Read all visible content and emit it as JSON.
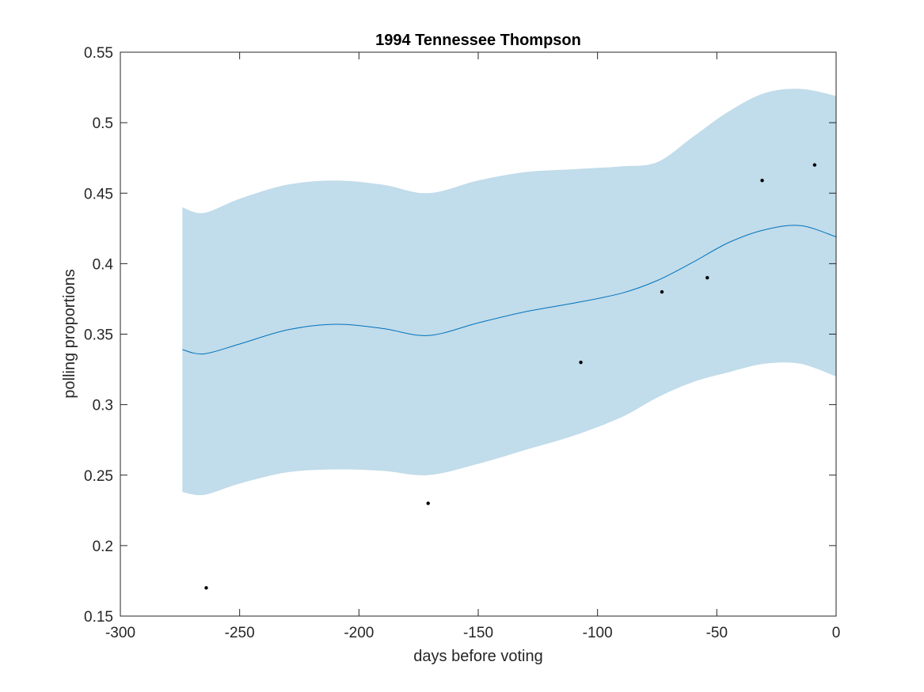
{
  "chart_data": {
    "type": "line",
    "title": "1994 Tennessee Thompson",
    "xlabel": "days before voting",
    "ylabel": "polling proportions",
    "xlim": [
      -300,
      0
    ],
    "ylim": [
      0.15,
      0.55
    ],
    "x_ticks": [
      -300,
      -250,
      -200,
      -150,
      -100,
      -50,
      0
    ],
    "x_tick_labels": [
      "-300",
      "-250",
      "-200",
      "-150",
      "-100",
      "-50",
      "0"
    ],
    "y_ticks": [
      0.15,
      0.2,
      0.25,
      0.3,
      0.35,
      0.4,
      0.45,
      0.5,
      0.55
    ],
    "y_tick_labels": [
      "0.15",
      "0.2",
      "0.25",
      "0.3",
      "0.35",
      "0.4",
      "0.45",
      "0.5",
      "0.55"
    ],
    "grid": false,
    "legend": "none",
    "colors": {
      "band": "#c1dcea",
      "mean_line": "#0072bd",
      "points": "#000000",
      "axes": "#262626"
    },
    "band": {
      "x": [
        -274,
        -265,
        -250,
        -230,
        -210,
        -190,
        -171,
        -150,
        -130,
        -110,
        -90,
        -75,
        -60,
        -45,
        -30,
        -15,
        0
      ],
      "upper": [
        0.44,
        0.436,
        0.446,
        0.456,
        0.459,
        0.456,
        0.45,
        0.459,
        0.465,
        0.467,
        0.469,
        0.472,
        0.49,
        0.508,
        0.521,
        0.524,
        0.519
      ],
      "lower": [
        0.238,
        0.236,
        0.244,
        0.252,
        0.254,
        0.253,
        0.25,
        0.258,
        0.268,
        0.278,
        0.291,
        0.305,
        0.316,
        0.323,
        0.329,
        0.329,
        0.32
      ]
    },
    "mean_line": {
      "x": [
        -274,
        -265,
        -250,
        -230,
        -210,
        -190,
        -171,
        -150,
        -130,
        -110,
        -90,
        -75,
        -60,
        -45,
        -30,
        -15,
        0
      ],
      "y": [
        0.339,
        0.336,
        0.343,
        0.353,
        0.357,
        0.354,
        0.349,
        0.358,
        0.366,
        0.372,
        0.379,
        0.388,
        0.401,
        0.415,
        0.424,
        0.427,
        0.419
      ]
    },
    "points": {
      "x": [
        -264,
        -171,
        -107,
        -73,
        -54,
        -31,
        -9
      ],
      "y": [
        0.17,
        0.23,
        0.33,
        0.38,
        0.39,
        0.459,
        0.47
      ]
    }
  }
}
